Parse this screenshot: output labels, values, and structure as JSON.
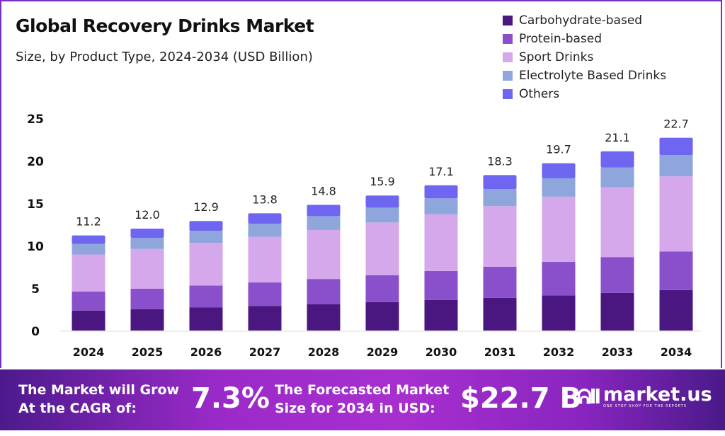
{
  "chart_data": {
    "type": "bar",
    "stacked": true,
    "title": "Global Recovery Drinks Market",
    "subtitle": "Size, by Product Type, 2024-2034 (USD Billion)",
    "xlabel": "",
    "ylabel": "",
    "ylim": [
      0,
      25
    ],
    "yticks": [
      "0",
      "5",
      "10",
      "15",
      "20",
      "25"
    ],
    "grid": false,
    "legend_position": "top-right",
    "categories": [
      "2024",
      "2025",
      "2026",
      "2027",
      "2028",
      "2029",
      "2030",
      "2031",
      "2032",
      "2033",
      "2034"
    ],
    "totals": [
      "11.2",
      "12.0",
      "12.9",
      "13.8",
      "14.8",
      "15.9",
      "17.1",
      "18.3",
      "19.7",
      "21.1",
      "22.7"
    ],
    "series": [
      {
        "name": "Carbohydrate-based",
        "color": "#4a1780",
        "values": [
          2.35,
          2.52,
          2.71,
          2.9,
          3.11,
          3.34,
          3.59,
          3.84,
          4.14,
          4.43,
          4.77
        ]
      },
      {
        "name": "Protein-based",
        "color": "#8a4fca",
        "values": [
          2.24,
          2.4,
          2.58,
          2.76,
          2.96,
          3.18,
          3.42,
          3.66,
          3.94,
          4.22,
          4.54
        ]
      },
      {
        "name": "Sport Drinks",
        "color": "#d4a8ea",
        "values": [
          4.37,
          4.68,
          5.03,
          5.38,
          5.77,
          6.2,
          6.67,
          7.14,
          7.68,
          8.23,
          8.85
        ]
      },
      {
        "name": "Electrolyte Based Drinks",
        "color": "#8fa6dc",
        "values": [
          1.23,
          1.32,
          1.42,
          1.52,
          1.63,
          1.75,
          1.88,
          2.01,
          2.17,
          2.32,
          2.5
        ]
      },
      {
        "name": "Others",
        "color": "#6e66f0",
        "values": [
          1.01,
          1.08,
          1.16,
          1.24,
          1.33,
          1.43,
          1.54,
          1.65,
          1.77,
          1.9,
          2.04
        ]
      }
    ]
  },
  "footer": {
    "cagr_label_1": "The Market will Grow",
    "cagr_label_2": "At the CAGR of:",
    "cagr_value": "7.3%",
    "forecast_label_1": "The Forecasted Market",
    "forecast_label_2": "Size for 2034 in USD:",
    "forecast_value": "$22.7 B",
    "brand": "market.us",
    "brand_tagline": "ONE STOP SHOP FOR THE REPORTS"
  }
}
